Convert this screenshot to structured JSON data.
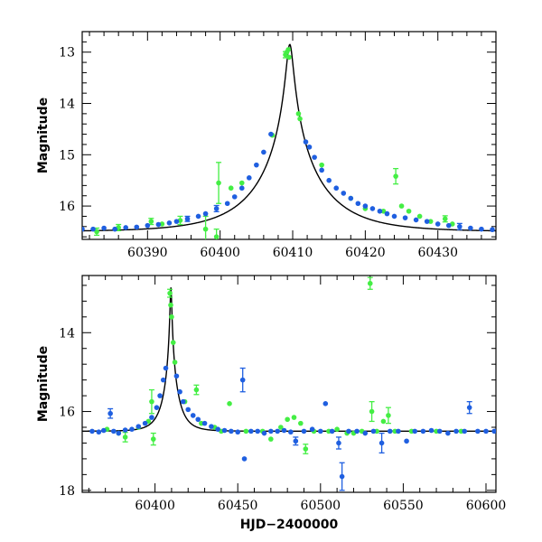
{
  "chart_data": [
    {
      "type": "scatter",
      "panel": "top",
      "ylabel": "Magnitude",
      "xlabel": "",
      "xlim": [
        60381.0,
        60438.0
      ],
      "ylim": [
        16.65,
        12.6
      ],
      "y_inverted": true,
      "xticks": [
        60390,
        60400,
        60410,
        60420,
        60430
      ],
      "yticks": [
        13,
        14,
        15,
        16
      ],
      "grid": false,
      "colors": {
        "blue": "#1f5fe0",
        "green": "#44ee44",
        "model": "#000000"
      },
      "model_curve": {
        "type": "lensing_peak",
        "t0": 60409.6,
        "peak_mag": 12.85,
        "base_mag": 16.5,
        "tE": 9.0,
        "u0": 0.05
      },
      "series": [
        {
          "color": "blue",
          "points": [
            {
              "x": 60381.0,
              "y": 16.45
            },
            {
              "x": 60382.5,
              "y": 16.45
            },
            {
              "x": 60384.0,
              "y": 16.43
            },
            {
              "x": 60385.5,
              "y": 16.45
            },
            {
              "x": 60387.0,
              "y": 16.42
            },
            {
              "x": 60388.5,
              "y": 16.41
            },
            {
              "x": 60390.0,
              "y": 16.38
            },
            {
              "x": 60391.5,
              "y": 16.36
            },
            {
              "x": 60393.0,
              "y": 16.33
            },
            {
              "x": 60394.0,
              "y": 16.3
            },
            {
              "x": 60395.5,
              "y": 16.25,
              "err": 0.05
            },
            {
              "x": 60397.0,
              "y": 16.2
            },
            {
              "x": 60398.0,
              "y": 16.15
            },
            {
              "x": 60399.5,
              "y": 16.05,
              "err": 0.06
            },
            {
              "x": 60401.0,
              "y": 15.95
            },
            {
              "x": 60402.0,
              "y": 15.82
            },
            {
              "x": 60403.0,
              "y": 15.65
            },
            {
              "x": 60404.0,
              "y": 15.45
            },
            {
              "x": 60405.0,
              "y": 15.2
            },
            {
              "x": 60406.0,
              "y": 14.95
            },
            {
              "x": 60407.0,
              "y": 14.6
            },
            {
              "x": 60411.8,
              "y": 14.75
            },
            {
              "x": 60412.3,
              "y": 14.85
            },
            {
              "x": 60413.0,
              "y": 15.05
            },
            {
              "x": 60414.0,
              "y": 15.3
            },
            {
              "x": 60415.0,
              "y": 15.5
            },
            {
              "x": 60416.0,
              "y": 15.65
            },
            {
              "x": 60417.0,
              "y": 15.75
            },
            {
              "x": 60418.0,
              "y": 15.85
            },
            {
              "x": 60419.0,
              "y": 15.95
            },
            {
              "x": 60420.0,
              "y": 16.0
            },
            {
              "x": 60421.0,
              "y": 16.05
            },
            {
              "x": 60422.0,
              "y": 16.1
            },
            {
              "x": 60423.0,
              "y": 16.15
            },
            {
              "x": 60424.0,
              "y": 16.2
            },
            {
              "x": 60425.5,
              "y": 16.23
            },
            {
              "x": 60427.0,
              "y": 16.27
            },
            {
              "x": 60428.5,
              "y": 16.3
            },
            {
              "x": 60430.0,
              "y": 16.35
            },
            {
              "x": 60431.5,
              "y": 16.38
            },
            {
              "x": 60433.0,
              "y": 16.4,
              "err": 0.06
            },
            {
              "x": 60434.5,
              "y": 16.43
            },
            {
              "x": 60436.0,
              "y": 16.45
            },
            {
              "x": 60437.5,
              "y": 16.46
            }
          ]
        },
        {
          "color": "green",
          "points": [
            {
              "x": 60383.0,
              "y": 16.5,
              "err": 0.07
            },
            {
              "x": 60386.0,
              "y": 16.42,
              "err": 0.06
            },
            {
              "x": 60390.5,
              "y": 16.3,
              "err": 0.06
            },
            {
              "x": 60392.0,
              "y": 16.35
            },
            {
              "x": 60394.5,
              "y": 16.28,
              "err": 0.08
            },
            {
              "x": 60398.0,
              "y": 16.45,
              "err": 0.25
            },
            {
              "x": 60399.5,
              "y": 16.6,
              "err": 0.15
            },
            {
              "x": 60399.8,
              "y": 15.55,
              "err": 0.4
            },
            {
              "x": 60401.5,
              "y": 15.65
            },
            {
              "x": 60403.0,
              "y": 15.55
            },
            {
              "x": 60407.2,
              "y": 14.62
            },
            {
              "x": 60409.0,
              "y": 13.05,
              "err": 0.06
            },
            {
              "x": 60409.2,
              "y": 13.0
            },
            {
              "x": 60409.4,
              "y": 12.95
            },
            {
              "x": 60409.5,
              "y": 13.1
            },
            {
              "x": 60410.8,
              "y": 14.2
            },
            {
              "x": 60411.0,
              "y": 14.3
            },
            {
              "x": 60414.0,
              "y": 15.2
            },
            {
              "x": 60418.0,
              "y": 15.85
            },
            {
              "x": 60420.0,
              "y": 16.05
            },
            {
              "x": 60422.5,
              "y": 16.1
            },
            {
              "x": 60424.2,
              "y": 15.42,
              "err": 0.15
            },
            {
              "x": 60425.0,
              "y": 16.0
            },
            {
              "x": 60426.0,
              "y": 16.1
            },
            {
              "x": 60427.5,
              "y": 16.2
            },
            {
              "x": 60429.0,
              "y": 16.3
            },
            {
              "x": 60431.0,
              "y": 16.25,
              "err": 0.06
            },
            {
              "x": 60432.0,
              "y": 16.35
            }
          ]
        }
      ]
    },
    {
      "type": "scatter",
      "panel": "bottom",
      "ylabel": "Magnitude",
      "xlabel": "HJD−2400000",
      "xlim": [
        60356.0,
        60606.0
      ],
      "ylim": [
        18.05,
        12.55
      ],
      "y_inverted": true,
      "xticks": [
        60400,
        60450,
        60500,
        60550,
        60600
      ],
      "yticks": [
        14,
        16,
        18
      ],
      "grid": false,
      "colors": {
        "blue": "#1f5fe0",
        "green": "#44ee44",
        "model": "#000000"
      },
      "model_curve": {
        "type": "lensing_peak",
        "t0": 60409.6,
        "peak_mag": 12.85,
        "base_mag": 16.5,
        "tE": 9.0,
        "u0": 0.05
      },
      "series": [
        {
          "color": "blue",
          "points": [
            {
              "x": 60362,
              "y": 16.5
            },
            {
              "x": 60366,
              "y": 16.52
            },
            {
              "x": 60369,
              "y": 16.48
            },
            {
              "x": 60373,
              "y": 16.05,
              "err": 0.12
            },
            {
              "x": 60375,
              "y": 16.5
            },
            {
              "x": 60378,
              "y": 16.55
            },
            {
              "x": 60382,
              "y": 16.47
            },
            {
              "x": 60386,
              "y": 16.45
            },
            {
              "x": 60390,
              "y": 16.38
            },
            {
              "x": 60394,
              "y": 16.3
            },
            {
              "x": 60398,
              "y": 16.15
            },
            {
              "x": 60401,
              "y": 15.9
            },
            {
              "x": 60403,
              "y": 15.6
            },
            {
              "x": 60405,
              "y": 15.2
            },
            {
              "x": 60406.5,
              "y": 14.9
            },
            {
              "x": 60413,
              "y": 15.1
            },
            {
              "x": 60415,
              "y": 15.5
            },
            {
              "x": 60417,
              "y": 15.75
            },
            {
              "x": 60420,
              "y": 15.95
            },
            {
              "x": 60423,
              "y": 16.1
            },
            {
              "x": 60426,
              "y": 16.2
            },
            {
              "x": 60430,
              "y": 16.3
            },
            {
              "x": 60434,
              "y": 16.38
            },
            {
              "x": 60438,
              "y": 16.45
            },
            {
              "x": 60442,
              "y": 16.48
            },
            {
              "x": 60446,
              "y": 16.5
            },
            {
              "x": 60450,
              "y": 16.52
            },
            {
              "x": 60453,
              "y": 15.2,
              "err": 0.3
            },
            {
              "x": 60454,
              "y": 17.2
            },
            {
              "x": 60458,
              "y": 16.5
            },
            {
              "x": 60462,
              "y": 16.5
            },
            {
              "x": 60466,
              "y": 16.55
            },
            {
              "x": 60470,
              "y": 16.5
            },
            {
              "x": 60474,
              "y": 16.5
            },
            {
              "x": 60478,
              "y": 16.48
            },
            {
              "x": 60482,
              "y": 16.52
            },
            {
              "x": 60485,
              "y": 16.75,
              "err": 0.1
            },
            {
              "x": 60490,
              "y": 16.5
            },
            {
              "x": 60495,
              "y": 16.45
            },
            {
              "x": 60500,
              "y": 16.5
            },
            {
              "x": 60503,
              "y": 15.8
            },
            {
              "x": 60507,
              "y": 16.5
            },
            {
              "x": 60511,
              "y": 16.8,
              "err": 0.15
            },
            {
              "x": 60513,
              "y": 17.65,
              "err": 0.35
            },
            {
              "x": 60517,
              "y": 16.5
            },
            {
              "x": 60522,
              "y": 16.5
            },
            {
              "x": 60527,
              "y": 16.55
            },
            {
              "x": 60532,
              "y": 16.5
            },
            {
              "x": 60537,
              "y": 16.8,
              "err": 0.25
            },
            {
              "x": 60542,
              "y": 16.5
            },
            {
              "x": 60547,
              "y": 16.5
            },
            {
              "x": 60552,
              "y": 16.75
            },
            {
              "x": 60557,
              "y": 16.5
            },
            {
              "x": 60562,
              "y": 16.5
            },
            {
              "x": 60567,
              "y": 16.48
            },
            {
              "x": 60572,
              "y": 16.5
            },
            {
              "x": 60577,
              "y": 16.55
            },
            {
              "x": 60582,
              "y": 16.5
            },
            {
              "x": 60587,
              "y": 16.5
            },
            {
              "x": 60590,
              "y": 15.9,
              "err": 0.15
            },
            {
              "x": 60595,
              "y": 16.5
            },
            {
              "x": 60600,
              "y": 16.5
            },
            {
              "x": 60605,
              "y": 16.5
            }
          ]
        },
        {
          "color": "green",
          "points": [
            {
              "x": 60371,
              "y": 16.45
            },
            {
              "x": 60378,
              "y": 16.55
            },
            {
              "x": 60382,
              "y": 16.65,
              "err": 0.12
            },
            {
              "x": 60390,
              "y": 16.4
            },
            {
              "x": 60396,
              "y": 16.25
            },
            {
              "x": 60398,
              "y": 15.75,
              "err": 0.3
            },
            {
              "x": 60399,
              "y": 16.7,
              "err": 0.15
            },
            {
              "x": 60409,
              "y": 13.0,
              "err": 0.1
            },
            {
              "x": 60409.5,
              "y": 13.3
            },
            {
              "x": 60410,
              "y": 13.6
            },
            {
              "x": 60411,
              "y": 14.25
            },
            {
              "x": 60412,
              "y": 14.75
            },
            {
              "x": 60418,
              "y": 15.75
            },
            {
              "x": 60425,
              "y": 15.45,
              "err": 0.12
            },
            {
              "x": 60428,
              "y": 16.3
            },
            {
              "x": 60436,
              "y": 16.4
            },
            {
              "x": 60440,
              "y": 16.5
            },
            {
              "x": 60445,
              "y": 15.8
            },
            {
              "x": 60455,
              "y": 16.5
            },
            {
              "x": 60465,
              "y": 16.5
            },
            {
              "x": 60470,
              "y": 16.7
            },
            {
              "x": 60476,
              "y": 16.4
            },
            {
              "x": 60480,
              "y": 16.2
            },
            {
              "x": 60484,
              "y": 16.15
            },
            {
              "x": 60488,
              "y": 16.3
            },
            {
              "x": 60491,
              "y": 16.95,
              "err": 0.12
            },
            {
              "x": 60496,
              "y": 16.5
            },
            {
              "x": 60505,
              "y": 16.5
            },
            {
              "x": 60510,
              "y": 16.45
            },
            {
              "x": 60516,
              "y": 16.55
            },
            {
              "x": 60520,
              "y": 16.55
            },
            {
              "x": 60525,
              "y": 16.5
            },
            {
              "x": 60530,
              "y": 12.75,
              "err": 0.15
            },
            {
              "x": 60531,
              "y": 16.0,
              "err": 0.25
            },
            {
              "x": 60534,
              "y": 16.5
            },
            {
              "x": 60538,
              "y": 16.25
            },
            {
              "x": 60541,
              "y": 16.1,
              "err": 0.2
            },
            {
              "x": 60545,
              "y": 16.5
            },
            {
              "x": 60555,
              "y": 16.5
            },
            {
              "x": 60570,
              "y": 16.5
            },
            {
              "x": 60585,
              "y": 16.5
            }
          ]
        }
      ]
    }
  ]
}
